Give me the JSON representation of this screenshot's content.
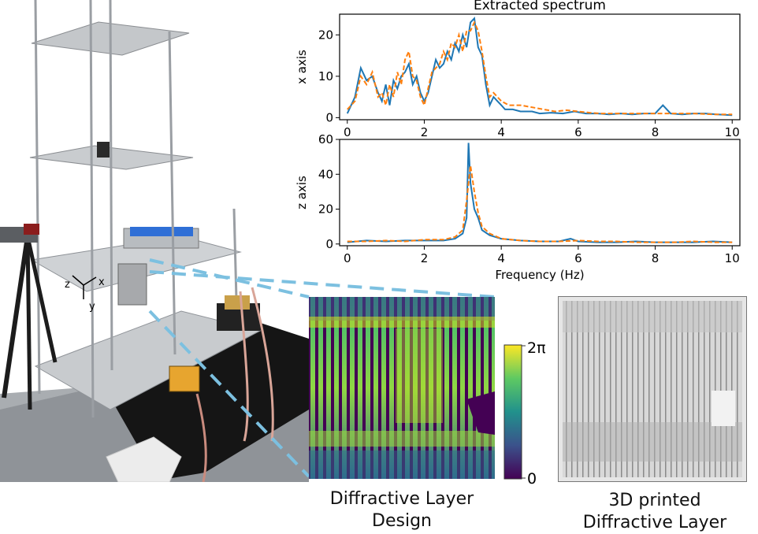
{
  "figure": {
    "caption_design": [
      "Diffractive Layer",
      "Design"
    ],
    "caption_printed": [
      "3D printed",
      "Diffractive Layer"
    ],
    "axes_labels": {
      "x": "x",
      "y": "y",
      "z": "z"
    },
    "colorbar": {
      "max_label": "2π",
      "min_label": "0"
    },
    "colors": {
      "series_measured": "#1f77b4",
      "series_extracted": "#ff7f0e",
      "callout": "#7cc0e0"
    }
  },
  "chart_data": [
    {
      "type": "line",
      "title": "Extracted spectrum",
      "xlabel": "",
      "ylabel": "x axis",
      "xlim": [
        -0.2,
        10.2
      ],
      "ylim": [
        -0.5,
        25
      ],
      "xticks": [
        "0",
        "2",
        "4",
        "6",
        "8",
        "10"
      ],
      "yticks": [
        "0",
        "10",
        "20"
      ],
      "grid": false,
      "series": [
        {
          "x": [
            0,
            0.2,
            0.35,
            0.5,
            0.65,
            0.8,
            0.9,
            1.0,
            1.1,
            1.2,
            1.3,
            1.4,
            1.5,
            1.6,
            1.7,
            1.8,
            1.9,
            2.0,
            2.1,
            2.2,
            2.3,
            2.4,
            2.5,
            2.6,
            2.7,
            2.8,
            2.9,
            3.0,
            3.1,
            3.2,
            3.3,
            3.4,
            3.5,
            3.6,
            3.7,
            3.8,
            3.9,
            4.0,
            4.1,
            4.3,
            4.5,
            4.8,
            5.0,
            5.3,
            5.6,
            5.9,
            6.2,
            6.5,
            6.8,
            7.1,
            7.4,
            7.7,
            8.0,
            8.2,
            8.4,
            8.7,
            9.0,
            9.3,
            9.6,
            10.0
          ],
          "y": [
            1,
            5,
            12,
            9,
            10,
            6,
            4,
            8,
            3,
            9,
            7,
            10,
            11,
            13,
            8,
            10,
            6,
            4,
            6,
            10,
            14,
            12,
            13,
            16,
            14,
            18,
            16,
            20,
            17,
            23,
            24,
            17,
            15,
            8,
            3,
            5,
            4,
            3,
            2,
            2,
            1.5,
            1.5,
            1,
            1.2,
            1,
            1.5,
            1,
            1,
            0.8,
            1,
            0.8,
            1,
            1,
            3,
            1,
            0.8,
            1,
            1,
            0.8,
            0.6
          ]
        },
        {
          "x": [
            0,
            0.2,
            0.35,
            0.5,
            0.65,
            0.8,
            0.9,
            1.0,
            1.1,
            1.2,
            1.3,
            1.4,
            1.5,
            1.6,
            1.7,
            1.8,
            1.9,
            2.0,
            2.1,
            2.2,
            2.3,
            2.4,
            2.5,
            2.6,
            2.7,
            2.8,
            2.9,
            3.0,
            3.1,
            3.2,
            3.3,
            3.4,
            3.5,
            3.6,
            3.7,
            3.8,
            3.9,
            4.0,
            4.2,
            4.5,
            4.8,
            5.1,
            5.4,
            5.7,
            6.0,
            6.3,
            6.6,
            7.0,
            7.5,
            8.0,
            8.5,
            9.0,
            9.5,
            10.0
          ],
          "y": [
            2,
            4,
            10,
            8,
            11,
            5,
            6,
            3,
            8,
            5,
            11,
            8,
            14,
            16,
            10,
            9,
            5,
            3,
            7,
            11,
            12,
            13,
            16,
            14,
            18,
            17,
            20,
            16,
            21,
            21,
            23,
            21,
            16,
            10,
            5,
            6,
            5,
            4,
            3,
            3,
            2.5,
            2,
            1.5,
            1.8,
            1.5,
            1.2,
            1,
            1,
            1,
            1,
            1,
            1,
            0.8,
            0.8
          ],
          "dashed": true
        }
      ]
    },
    {
      "type": "line",
      "title": "",
      "xlabel": "Frequency (Hz)",
      "ylabel": "z axis",
      "xlim": [
        -0.2,
        10.2
      ],
      "ylim": [
        -1,
        60
      ],
      "xticks": [
        "0",
        "2",
        "4",
        "6",
        "8",
        "10"
      ],
      "yticks": [
        "0",
        "20",
        "40",
        "60"
      ],
      "grid": false,
      "series": [
        {
          "x": [
            0,
            0.5,
            1.0,
            1.5,
            2.0,
            2.5,
            2.8,
            3.0,
            3.1,
            3.15,
            3.2,
            3.3,
            3.4,
            3.5,
            3.7,
            4.0,
            4.5,
            5.0,
            5.5,
            5.8,
            6.0,
            6.5,
            7.0,
            7.5,
            8.0,
            8.5,
            9.0,
            9.5,
            10.0
          ],
          "y": [
            1,
            2,
            1.5,
            2,
            2,
            2,
            3,
            6,
            15,
            58,
            35,
            20,
            15,
            8,
            5,
            3,
            2,
            1.5,
            1.5,
            3,
            1.5,
            1,
            1,
            1.5,
            1,
            1,
            1,
            1.5,
            1
          ]
        },
        {
          "x": [
            0,
            0.5,
            1.0,
            1.5,
            2.0,
            2.5,
            2.8,
            3.0,
            3.1,
            3.2,
            3.3,
            3.4,
            3.5,
            3.7,
            4.0,
            4.5,
            5.0,
            5.5,
            6.0,
            6.5,
            7.0,
            7.5,
            8.0,
            8.5,
            9.0,
            9.5,
            10.0
          ],
          "y": [
            1.5,
            1.5,
            2,
            1.5,
            2.5,
            2.5,
            4,
            8,
            25,
            45,
            30,
            18,
            10,
            6,
            3,
            2,
            1.5,
            1.5,
            2,
            1.5,
            1.5,
            1,
            1,
            1,
            1.5,
            1,
            1
          ],
          "dashed": true
        }
      ]
    }
  ]
}
